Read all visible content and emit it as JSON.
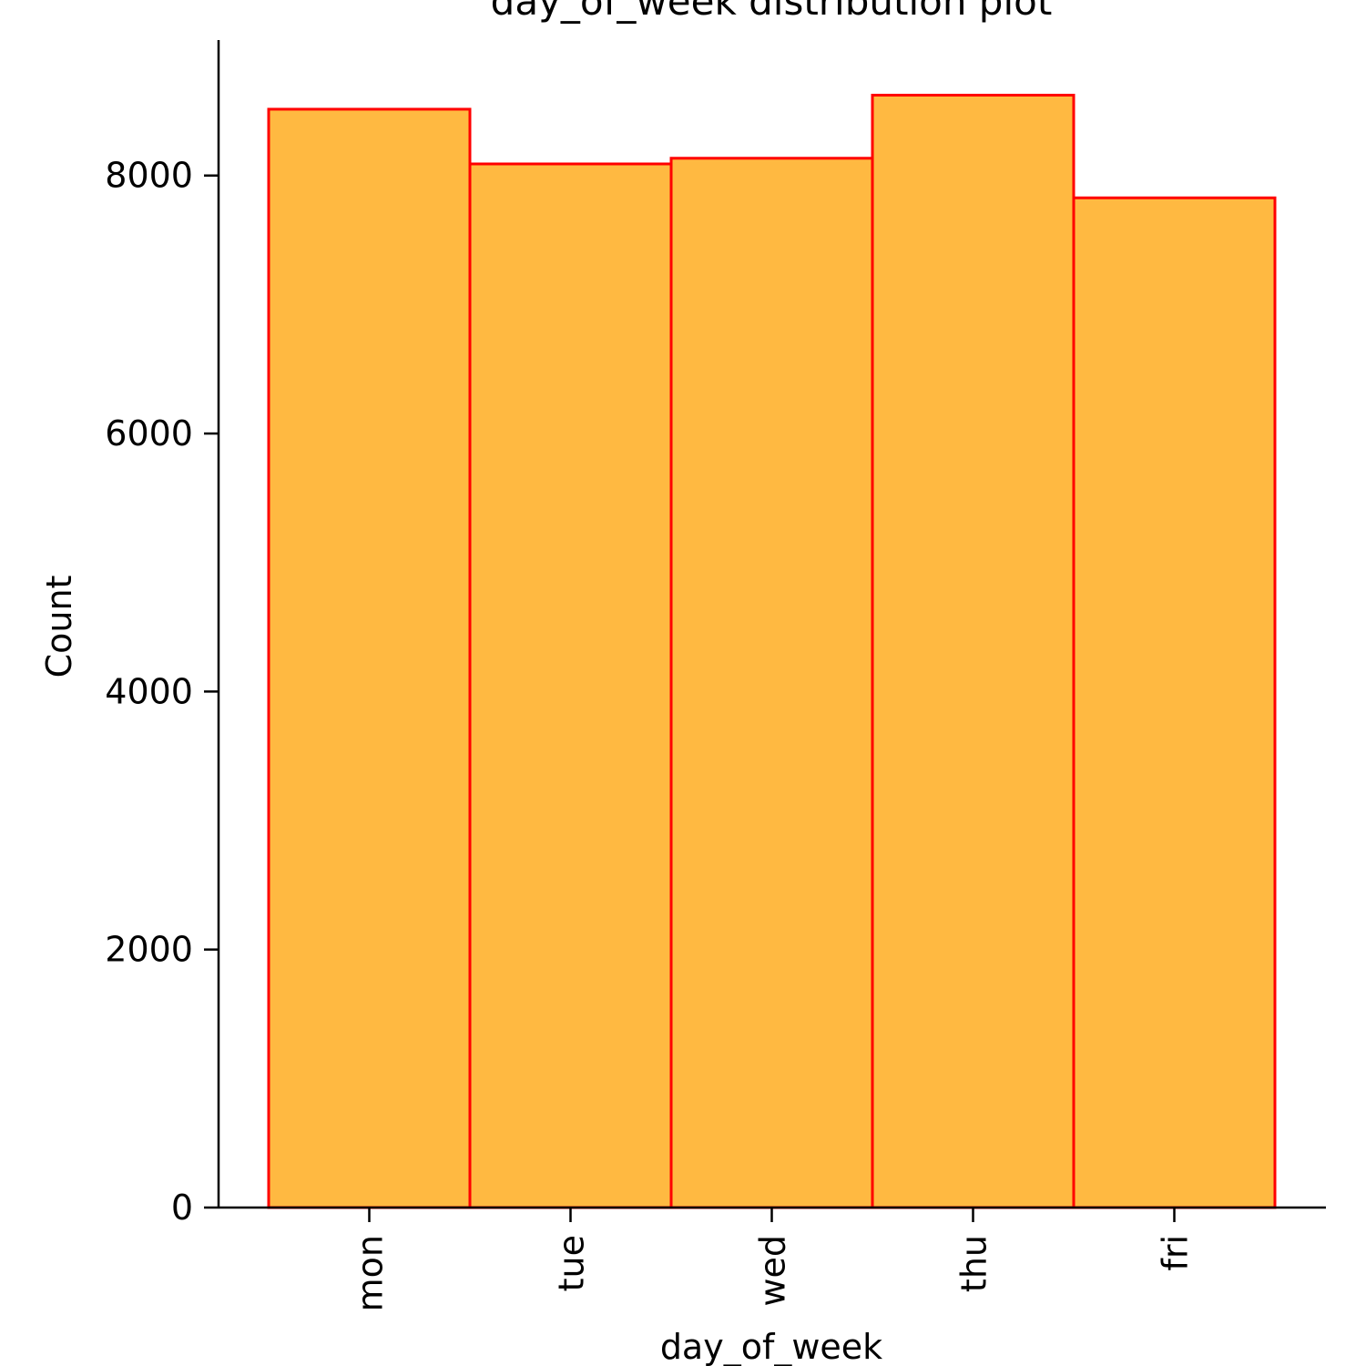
{
  "chart_data": {
    "type": "bar",
    "title": "day_of_week distribution plot",
    "xlabel": "day_of_week",
    "ylabel": "Count",
    "categories": [
      "mon",
      "tue",
      "wed",
      "thu",
      "fri"
    ],
    "values": [
      8514,
      8090,
      8134,
      8623,
      7827
    ],
    "ylim": [
      0,
      9050
    ],
    "yticks": [
      0,
      2000,
      4000,
      6000,
      8000
    ],
    "grid": false,
    "legend": "none",
    "colors": {
      "bar_fill": "#ffb941",
      "bar_edge": "#ff0000",
      "axis": "#000000"
    }
  }
}
